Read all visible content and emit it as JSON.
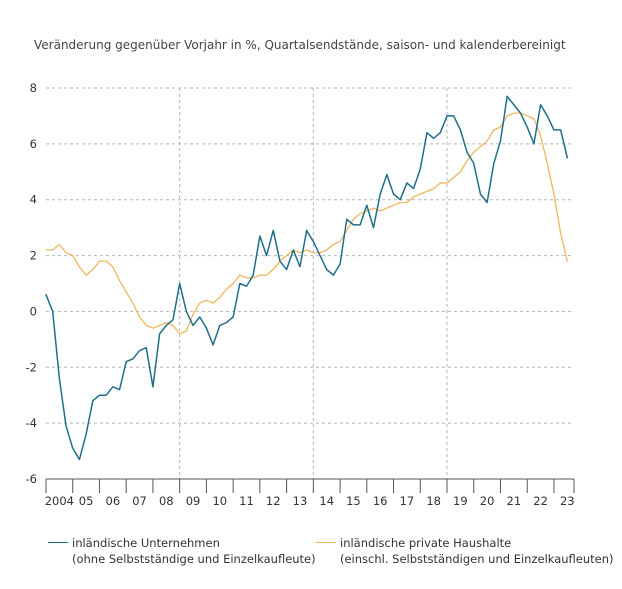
{
  "chart_data": {
    "type": "line",
    "title": "",
    "subtitle": "Veränderung gegenüber Vorjahr in %, Quartalsendstände, saison- und kalenderbereinigt",
    "xlabel": "",
    "ylabel": "",
    "ylim": [
      -6,
      8
    ],
    "yticks": [
      -6,
      -4,
      -2,
      0,
      2,
      4,
      6,
      8
    ],
    "x_range": [
      2004.0,
      2023.75
    ],
    "x_ticks": [
      {
        "x": 2004.0,
        "label": "2004"
      },
      {
        "x": 2005.0,
        "label": "05"
      },
      {
        "x": 2006.0,
        "label": "06"
      },
      {
        "x": 2007.0,
        "label": "07"
      },
      {
        "x": 2008.0,
        "label": "08"
      },
      {
        "x": 2009.0,
        "label": "09"
      },
      {
        "x": 2010.0,
        "label": "10"
      },
      {
        "x": 2011.0,
        "label": "11"
      },
      {
        "x": 2012.0,
        "label": "12"
      },
      {
        "x": 2013.0,
        "label": "13"
      },
      {
        "x": 2014.0,
        "label": "14"
      },
      {
        "x": 2015.0,
        "label": "15"
      },
      {
        "x": 2016.0,
        "label": "16"
      },
      {
        "x": 2017.0,
        "label": "17"
      },
      {
        "x": 2018.0,
        "label": "18"
      },
      {
        "x": 2019.0,
        "label": "19"
      },
      {
        "x": 2020.0,
        "label": "20"
      },
      {
        "x": 2021.0,
        "label": "21"
      },
      {
        "x": 2022.0,
        "label": "22"
      },
      {
        "x": 2023.0,
        "label": "23"
      }
    ],
    "vertical_gridlines": [
      2009.0,
      2014.0,
      2019.0
    ],
    "grid": true,
    "legend_position": "bottom",
    "series": [
      {
        "name": "inländische Unternehmen",
        "name_line2": "(ohne Selbstständige und Einzelkaufleute)",
        "color": "#1f6f8b",
        "points": [
          [
            2004.0,
            0.6
          ],
          [
            2004.25,
            0.0
          ],
          [
            2004.5,
            -2.4
          ],
          [
            2004.75,
            -4.1
          ],
          [
            2005.0,
            -4.9
          ],
          [
            2005.25,
            -5.3
          ],
          [
            2005.5,
            -4.4
          ],
          [
            2005.75,
            -3.2
          ],
          [
            2006.0,
            -3.0
          ],
          [
            2006.25,
            -3.0
          ],
          [
            2006.5,
            -2.7
          ],
          [
            2006.75,
            -2.8
          ],
          [
            2007.0,
            -1.8
          ],
          [
            2007.25,
            -1.7
          ],
          [
            2007.5,
            -1.4
          ],
          [
            2007.75,
            -1.3
          ],
          [
            2008.0,
            -2.7
          ],
          [
            2008.25,
            -0.8
          ],
          [
            2008.5,
            -0.5
          ],
          [
            2008.75,
            -0.3
          ],
          [
            2009.0,
            1.0
          ],
          [
            2009.25,
            0.0
          ],
          [
            2009.5,
            -0.5
          ],
          [
            2009.75,
            -0.2
          ],
          [
            2010.0,
            -0.6
          ],
          [
            2010.25,
            -1.2
          ],
          [
            2010.5,
            -0.5
          ],
          [
            2010.75,
            -0.4
          ],
          [
            2011.0,
            -0.2
          ],
          [
            2011.25,
            1.0
          ],
          [
            2011.5,
            0.9
          ],
          [
            2011.75,
            1.3
          ],
          [
            2012.0,
            2.7
          ],
          [
            2012.25,
            2.0
          ],
          [
            2012.5,
            2.9
          ],
          [
            2012.75,
            1.8
          ],
          [
            2013.0,
            1.5
          ],
          [
            2013.25,
            2.2
          ],
          [
            2013.5,
            1.6
          ],
          [
            2013.75,
            2.9
          ],
          [
            2014.0,
            2.5
          ],
          [
            2014.25,
            2.0
          ],
          [
            2014.5,
            1.5
          ],
          [
            2014.75,
            1.3
          ],
          [
            2015.0,
            1.7
          ],
          [
            2015.25,
            3.3
          ],
          [
            2015.5,
            3.1
          ],
          [
            2015.75,
            3.1
          ],
          [
            2016.0,
            3.8
          ],
          [
            2016.25,
            3.0
          ],
          [
            2016.5,
            4.2
          ],
          [
            2016.75,
            4.9
          ],
          [
            2017.0,
            4.2
          ],
          [
            2017.25,
            4.0
          ],
          [
            2017.5,
            4.6
          ],
          [
            2017.75,
            4.4
          ],
          [
            2018.0,
            5.1
          ],
          [
            2018.25,
            6.4
          ],
          [
            2018.5,
            6.2
          ],
          [
            2018.75,
            6.4
          ],
          [
            2019.0,
            7.0
          ],
          [
            2019.25,
            7.0
          ],
          [
            2019.5,
            6.5
          ],
          [
            2019.75,
            5.7
          ],
          [
            2020.0,
            5.3
          ],
          [
            2020.25,
            4.2
          ],
          [
            2020.5,
            3.9
          ],
          [
            2020.75,
            5.3
          ],
          [
            2021.0,
            6.1
          ],
          [
            2021.25,
            7.7
          ],
          [
            2021.5,
            7.4
          ],
          [
            2021.75,
            7.1
          ],
          [
            2022.0,
            6.6
          ],
          [
            2022.25,
            6.0
          ],
          [
            2022.5,
            7.4
          ],
          [
            2022.75,
            7.0
          ],
          [
            2023.0,
            6.5
          ],
          [
            2023.25,
            6.5
          ],
          [
            2023.5,
            5.5
          ]
        ]
      },
      {
        "name": "inländische private Haushalte",
        "name_line2": "(einschl. Selbstständigen und Einzelkaufleuten)",
        "color": "#f2b45c",
        "points": [
          [
            2004.0,
            2.2
          ],
          [
            2004.25,
            2.2
          ],
          [
            2004.5,
            2.4
          ],
          [
            2004.75,
            2.1
          ],
          [
            2005.0,
            2.0
          ],
          [
            2005.25,
            1.6
          ],
          [
            2005.5,
            1.3
          ],
          [
            2005.75,
            1.5
          ],
          [
            2006.0,
            1.8
          ],
          [
            2006.25,
            1.8
          ],
          [
            2006.5,
            1.6
          ],
          [
            2006.75,
            1.1
          ],
          [
            2007.0,
            0.7
          ],
          [
            2007.25,
            0.3
          ],
          [
            2007.5,
            -0.2
          ],
          [
            2007.75,
            -0.5
          ],
          [
            2008.0,
            -0.6
          ],
          [
            2008.25,
            -0.5
          ],
          [
            2008.5,
            -0.4
          ],
          [
            2008.75,
            -0.5
          ],
          [
            2009.0,
            -0.8
          ],
          [
            2009.25,
            -0.7
          ],
          [
            2009.5,
            -0.1
          ],
          [
            2009.75,
            0.3
          ],
          [
            2010.0,
            0.4
          ],
          [
            2010.25,
            0.3
          ],
          [
            2010.5,
            0.5
          ],
          [
            2010.75,
            0.8
          ],
          [
            2011.0,
            1.0
          ],
          [
            2011.25,
            1.3
          ],
          [
            2011.5,
            1.2
          ],
          [
            2011.75,
            1.2
          ],
          [
            2012.0,
            1.3
          ],
          [
            2012.25,
            1.3
          ],
          [
            2012.5,
            1.5
          ],
          [
            2012.75,
            1.8
          ],
          [
            2013.0,
            2.0
          ],
          [
            2013.25,
            2.2
          ],
          [
            2013.5,
            2.1
          ],
          [
            2013.75,
            2.2
          ],
          [
            2014.0,
            2.1
          ],
          [
            2014.25,
            2.1
          ],
          [
            2014.5,
            2.2
          ],
          [
            2014.75,
            2.4
          ],
          [
            2015.0,
            2.5
          ],
          [
            2015.25,
            2.9
          ],
          [
            2015.5,
            3.3
          ],
          [
            2015.75,
            3.5
          ],
          [
            2016.0,
            3.6
          ],
          [
            2016.25,
            3.7
          ],
          [
            2016.5,
            3.6
          ],
          [
            2016.75,
            3.7
          ],
          [
            2017.0,
            3.8
          ],
          [
            2017.25,
            3.9
          ],
          [
            2017.5,
            3.9
          ],
          [
            2017.75,
            4.1
          ],
          [
            2018.0,
            4.2
          ],
          [
            2018.25,
            4.3
          ],
          [
            2018.5,
            4.4
          ],
          [
            2018.75,
            4.6
          ],
          [
            2019.0,
            4.6
          ],
          [
            2019.25,
            4.8
          ],
          [
            2019.5,
            5.0
          ],
          [
            2019.75,
            5.4
          ],
          [
            2020.0,
            5.7
          ],
          [
            2020.25,
            5.9
          ],
          [
            2020.5,
            6.1
          ],
          [
            2020.75,
            6.5
          ],
          [
            2021.0,
            6.6
          ],
          [
            2021.25,
            7.0
          ],
          [
            2021.5,
            7.1
          ],
          [
            2021.75,
            7.1
          ],
          [
            2022.0,
            7.0
          ],
          [
            2022.25,
            6.9
          ],
          [
            2022.5,
            6.3
          ],
          [
            2022.75,
            5.3
          ],
          [
            2023.0,
            4.2
          ],
          [
            2023.25,
            2.8
          ],
          [
            2023.5,
            1.8
          ]
        ]
      }
    ]
  }
}
